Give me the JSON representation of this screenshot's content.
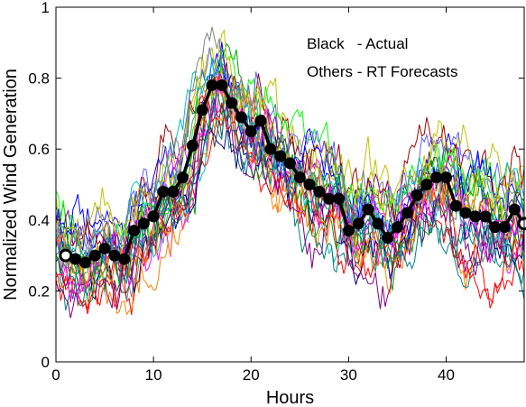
{
  "chart_data": {
    "type": "line",
    "xlabel": "Hours",
    "ylabel": "Normalized Wind Generation",
    "xlim": [
      0,
      48
    ],
    "ylim": [
      0,
      1
    ],
    "xticks": [
      0,
      10,
      20,
      30,
      40
    ],
    "yticks": [
      0,
      0.2,
      0.4,
      0.6,
      0.8,
      1
    ],
    "grid": false,
    "annotations": [
      {
        "text": "Black   - Actual"
      },
      {
        "text": "Others - RT Forecasts"
      }
    ],
    "actual": {
      "color": "#000000",
      "marker": "circle",
      "x": [
        1,
        2,
        3,
        4,
        5,
        6,
        7,
        8,
        9,
        10,
        11,
        12,
        13,
        14,
        15,
        16,
        17,
        18,
        19,
        20,
        21,
        22,
        23,
        24,
        25,
        26,
        27,
        28,
        29,
        30,
        31,
        32,
        33,
        34,
        35,
        36,
        37,
        38,
        39,
        40,
        41,
        42,
        43,
        44,
        45,
        46,
        47,
        48
      ],
      "values": [
        0.3,
        0.29,
        0.28,
        0.3,
        0.32,
        0.3,
        0.29,
        0.37,
        0.39,
        0.41,
        0.48,
        0.48,
        0.52,
        0.61,
        0.71,
        0.78,
        0.78,
        0.73,
        0.69,
        0.65,
        0.68,
        0.6,
        0.58,
        0.56,
        0.52,
        0.5,
        0.48,
        0.46,
        0.46,
        0.37,
        0.39,
        0.43,
        0.39,
        0.35,
        0.38,
        0.42,
        0.47,
        0.5,
        0.52,
        0.52,
        0.44,
        0.42,
        0.41,
        0.41,
        0.38,
        0.38,
        0.43,
        0.39
      ]
    },
    "forecast_colors": [
      "#0000ff",
      "#ff0000",
      "#00a000",
      "#ff00ff",
      "#00c0c0",
      "#c0c000",
      "#808080",
      "#800080",
      "#ff8000",
      "#008080",
      "#000080",
      "#a00000",
      "#00ff00",
      "#6060ff",
      "#404040"
    ],
    "forecast_count": 25
  }
}
